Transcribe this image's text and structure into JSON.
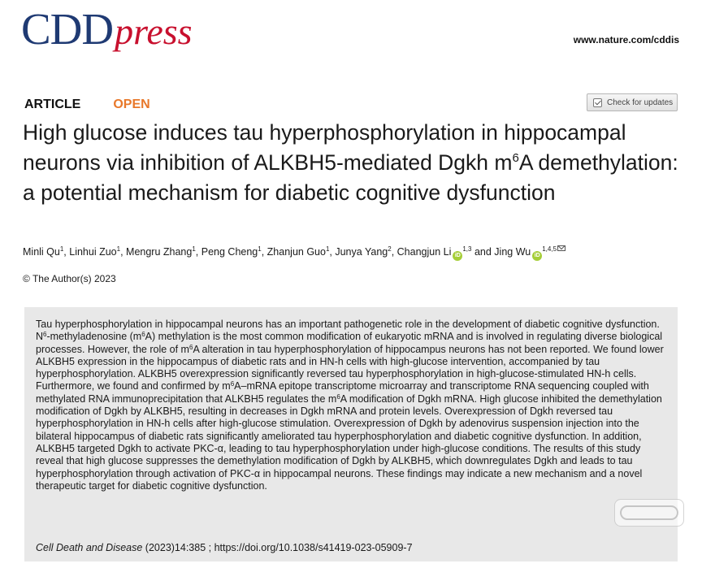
{
  "logo": {
    "brand": "CDD",
    "word": "press"
  },
  "header": {
    "url": "www.nature.com/cddis"
  },
  "article_type": {
    "label": "ARTICLE",
    "access": "OPEN"
  },
  "check_updates": {
    "label": "Check for updates"
  },
  "title": {
    "part1": "High glucose induces tau hyperphosphorylation in hippocampal neurons via inhibition of ALKBH5-mediated Dgkh m",
    "sup": "6",
    "part2": "A demethylation: a potential mechanism for diabetic cognitive dysfunction"
  },
  "authors": [
    {
      "name": "Minli Qu",
      "aff": "1",
      "sep": ", "
    },
    {
      "name": "Linhui Zuo",
      "aff": "1",
      "sep": ", "
    },
    {
      "name": "Mengru Zhang",
      "aff": "1",
      "sep": ", "
    },
    {
      "name": "Peng Cheng",
      "aff": "1",
      "sep": ", "
    },
    {
      "name": "Zhanjun Guo",
      "aff": "1",
      "sep": ", "
    },
    {
      "name": "Junya Yang",
      "aff": "2",
      "sep": ", "
    },
    {
      "name": "Changjun Li",
      "aff": "1,3",
      "sep": " and "
    },
    {
      "name": "Jing Wu",
      "aff": "1,4,5",
      "sep": ""
    }
  ],
  "copyright": "© The Author(s) 2023",
  "abstract": {
    "s1": "Tau hyperphosphorylation in hippocampal neurons has an important pathogenetic role in the development of diabetic cognitive dysfunction. N",
    "sup1": "6",
    "s2": "-methyladenosine (m",
    "sup2": "6",
    "s3": "A) methylation is the most common modification of eukaryotic mRNA and is involved in regulating diverse biological processes. However, the role of m",
    "sup3": "6",
    "s4": "A alteration in tau hyperphosphorylation of hippocampus neurons has not been reported. We found lower ALKBH5 expression in the hippocampus of diabetic rats and in HN-h cells with high-glucose intervention, accompanied by tau hyperphosphorylation. ALKBH5 overexpression significantly reversed tau hyperphosphorylation in high-glucose-stimulated HN-h cells. Furthermore, we found and confirmed by m",
    "sup4": "6",
    "s5": "A–mRNA epitope transcriptome microarray and transcriptome RNA sequencing coupled with methylated RNA immunoprecipitation that ALKBH5 regulates the m",
    "sup5": "6",
    "s6": "A modification of Dgkh mRNA. High glucose inhibited the demethylation modification of Dgkh by ALKBH5, resulting in decreases in Dgkh mRNA and protein levels. Overexpression of Dgkh reversed tau hyperphosphorylation in HN-h cells after high-glucose stimulation. Overexpression of Dgkh by adenovirus suspension injection into the bilateral hippocampus of diabetic rats significantly ameliorated tau hyperphosphorylation and diabetic cognitive dysfunction. In addition, ALKBH5 targeted Dgkh to activate PKC-α, leading to tau hyperphosphorylation under high-glucose conditions. The results of this study reveal that high glucose suppresses the demethylation modification of Dgkh by ALKBH5, which downregulates Dgkh and leads to tau hyperphosphorylation through activation of PKC-α in hippocampal neurons. These findings may indicate a new mechanism and a novel therapeutic target for diabetic cognitive dysfunction."
  },
  "citation": {
    "journal": "Cell Death and Disease",
    "ref": " (2023)14:385 ; https://doi.org/10.1038/s41419-023-05909-7"
  },
  "icons": {
    "orcid": "orcid-icon",
    "email": "email-icon",
    "check": "check-updates-icon",
    "watermark": "watermark-logo"
  },
  "colors": {
    "brand_blue": "#1f3a73",
    "brand_red": "#c8102e",
    "open_orange": "#e8782a",
    "orcid_green": "#a6ce39",
    "abstract_bg": "#e8e8e8"
  }
}
